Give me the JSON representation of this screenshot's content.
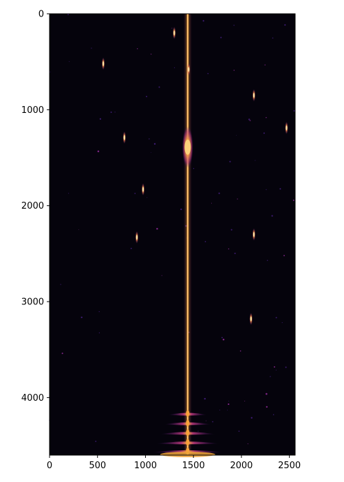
{
  "image": {
    "kind": "astronomical image (magma colormap)",
    "colormap": "inferno",
    "background_color": "#05030c",
    "x_axis": {
      "ticks": [
        0,
        500,
        1000,
        1500,
        2000,
        2500
      ],
      "labels": [
        "0",
        "500",
        "1000",
        "1500",
        "2000",
        "2500"
      ],
      "range": [
        0,
        2560
      ]
    },
    "y_axis": {
      "ticks": [
        0,
        1000,
        2000,
        3000,
        4000
      ],
      "labels": [
        "0",
        "1000",
        "2000",
        "3000",
        "4000"
      ],
      "range": [
        0,
        4600
      ],
      "inverted": true
    },
    "features": {
      "main_streak_x": 1440,
      "bright_core": {
        "x": 1440,
        "y": 1390
      },
      "bright_sources": [
        {
          "x": 780,
          "y": 1290
        },
        {
          "x": 975,
          "y": 1830
        },
        {
          "x": 910,
          "y": 2330
        },
        {
          "x": 2130,
          "y": 850
        },
        {
          "x": 2470,
          "y": 1190
        },
        {
          "x": 2130,
          "y": 2300
        },
        {
          "x": 2100,
          "y": 3180
        },
        {
          "x": 560,
          "y": 520
        },
        {
          "x": 1450,
          "y": 580
        },
        {
          "x": 1300,
          "y": 200
        }
      ],
      "bottom_flares_y": [
        4180,
        4280,
        4380,
        4480,
        4570
      ]
    }
  }
}
